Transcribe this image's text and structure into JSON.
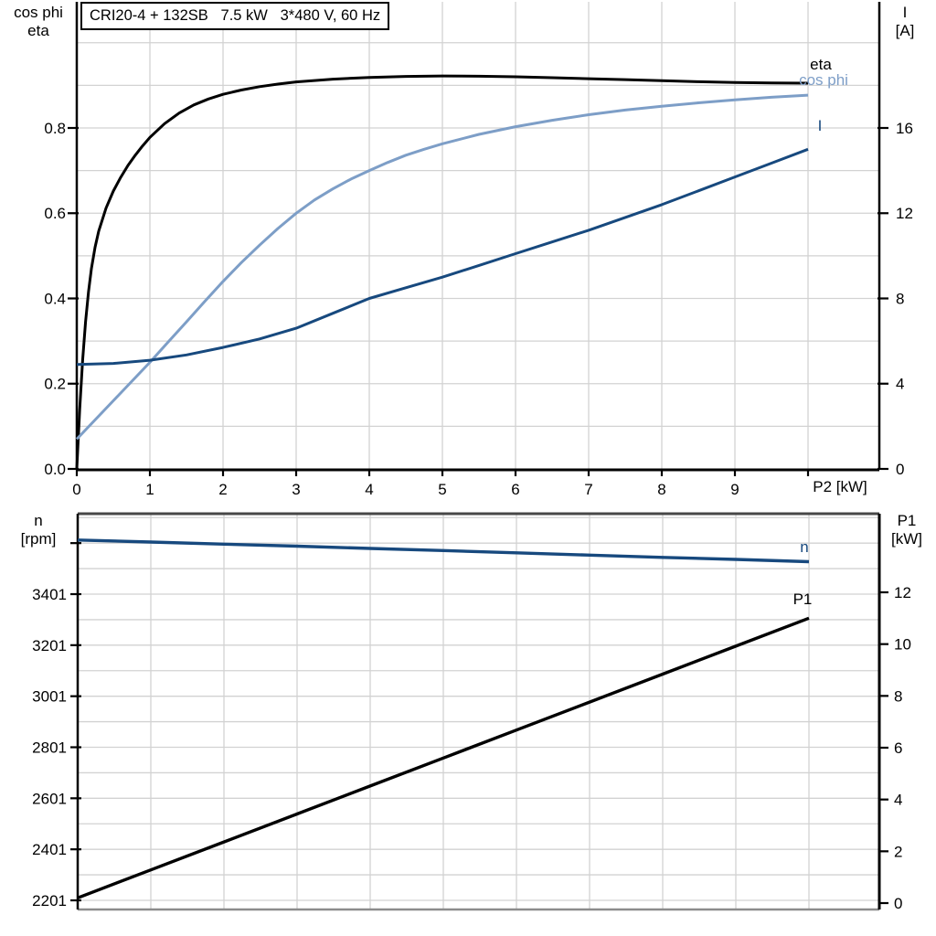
{
  "header": {
    "title": "CRI20-4 + 132SB   7.5 kW   3*480 V, 60 Hz"
  },
  "colors": {
    "black": "#000000",
    "dark_blue": "#17497e",
    "light_blue": "#7d9ec7",
    "grid": "#d2d2d2",
    "frame_dark": "#474747",
    "frame_gray": "#8c8c8c"
  },
  "chart_data": [
    {
      "id": "motor-electrical-curves",
      "type": "line",
      "x_axis": {
        "label": "P2 [kW]",
        "min": 0,
        "max": 11,
        "ticks": [
          [
            0,
            "0"
          ],
          [
            1,
            "1"
          ],
          [
            2,
            "2"
          ],
          [
            3,
            "3"
          ],
          [
            4,
            "4"
          ],
          [
            5,
            "5"
          ],
          [
            6,
            "6"
          ],
          [
            7,
            "7"
          ],
          [
            8,
            "8"
          ],
          [
            9,
            "9"
          ],
          [
            10,
            ""
          ]
        ]
      },
      "y_left": {
        "name_lines": [
          "cos phi",
          "eta"
        ],
        "min": 0,
        "max": 1.0,
        "ticks": [
          [
            0,
            "0.0"
          ],
          [
            0.2,
            "0.2"
          ],
          [
            0.4,
            "0.4"
          ],
          [
            0.6,
            "0.6"
          ],
          [
            0.8,
            "0.8"
          ]
        ],
        "grid": {
          "from": 0.1,
          "to": 1.0,
          "step": 0.1
        }
      },
      "y_right": {
        "name_lines": [
          "I",
          "[A]"
        ],
        "min": 0,
        "max": 20,
        "ticks": [
          [
            0,
            "0"
          ],
          [
            4,
            "4"
          ],
          [
            8,
            "8"
          ],
          [
            12,
            "12"
          ],
          [
            16,
            "16"
          ]
        ]
      },
      "series": [
        {
          "name": "eta",
          "axis": "left",
          "color_key": "black",
          "points": [
            [
              0,
              0
            ],
            [
              0.04,
              0.14
            ],
            [
              0.08,
              0.255
            ],
            [
              0.12,
              0.345
            ],
            [
              0.16,
              0.415
            ],
            [
              0.2,
              0.47
            ],
            [
              0.25,
              0.52
            ],
            [
              0.3,
              0.558
            ],
            [
              0.4,
              0.612
            ],
            [
              0.5,
              0.652
            ],
            [
              0.6,
              0.684
            ],
            [
              0.7,
              0.712
            ],
            [
              0.8,
              0.736
            ],
            [
              0.9,
              0.758
            ],
            [
              1,
              0.778
            ],
            [
              1.2,
              0.81
            ],
            [
              1.4,
              0.835
            ],
            [
              1.6,
              0.854
            ],
            [
              1.8,
              0.868
            ],
            [
              2,
              0.879
            ],
            [
              2.25,
              0.889
            ],
            [
              2.5,
              0.897
            ],
            [
              2.75,
              0.903
            ],
            [
              3,
              0.908
            ],
            [
              3.5,
              0.9145
            ],
            [
              4,
              0.9185
            ],
            [
              4.5,
              0.921
            ],
            [
              5,
              0.922
            ],
            [
              5.5,
              0.9215
            ],
            [
              6,
              0.92
            ],
            [
              6.5,
              0.918
            ],
            [
              7,
              0.9155
            ],
            [
              7.5,
              0.9135
            ],
            [
              8,
              0.911
            ],
            [
              8.5,
              0.9085
            ],
            [
              9,
              0.9065
            ],
            [
              9.5,
              0.9055
            ],
            [
              10,
              0.905
            ]
          ]
        },
        {
          "name": "cos phi",
          "axis": "left",
          "color_key": "light_blue",
          "points": [
            [
              0,
              0.07
            ],
            [
              0.25,
              0.115
            ],
            [
              0.5,
              0.16
            ],
            [
              0.75,
              0.205
            ],
            [
              1,
              0.25
            ],
            [
              1.25,
              0.298
            ],
            [
              1.5,
              0.345
            ],
            [
              1.75,
              0.393
            ],
            [
              2,
              0.44
            ],
            [
              2.25,
              0.484
            ],
            [
              2.5,
              0.525
            ],
            [
              2.75,
              0.564
            ],
            [
              3,
              0.6
            ],
            [
              3.25,
              0.631
            ],
            [
              3.5,
              0.657
            ],
            [
              3.75,
              0.68
            ],
            [
              4,
              0.7
            ],
            [
              4.25,
              0.719
            ],
            [
              4.5,
              0.736
            ],
            [
              4.75,
              0.75
            ],
            [
              5,
              0.763
            ],
            [
              5.5,
              0.785
            ],
            [
              6,
              0.803
            ],
            [
              6.5,
              0.818
            ],
            [
              7,
              0.831
            ],
            [
              7.5,
              0.842
            ],
            [
              8,
              0.851
            ],
            [
              8.5,
              0.859
            ],
            [
              9,
              0.866
            ],
            [
              9.5,
              0.872
            ],
            [
              10,
              0.877
            ]
          ]
        },
        {
          "name": "I",
          "axis": "right",
          "color_key": "dark_blue",
          "points": [
            [
              0,
              4.9
            ],
            [
              0.5,
              4.95
            ],
            [
              1,
              5.1
            ],
            [
              1.5,
              5.35
            ],
            [
              2,
              5.7
            ],
            [
              2.5,
              6.1
            ],
            [
              3,
              6.6
            ],
            [
              3.5,
              7.3
            ],
            [
              4,
              8.0
            ],
            [
              4.5,
              8.5
            ],
            [
              5,
              9.0
            ],
            [
              5.5,
              9.55
            ],
            [
              6,
              10.1
            ],
            [
              6.5,
              10.65
            ],
            [
              7,
              11.2
            ],
            [
              7.5,
              11.8
            ],
            [
              8,
              12.4
            ],
            [
              8.5,
              13.05
            ],
            [
              9,
              13.7
            ],
            [
              9.5,
              14.35
            ],
            [
              10,
              15.0
            ]
          ]
        }
      ]
    },
    {
      "id": "motor-speed-power-curves",
      "type": "line",
      "x_axis": {
        "label": "",
        "min": 0,
        "max": 11,
        "ticks": [
          [
            1,
            ""
          ],
          [
            2,
            ""
          ],
          [
            3,
            ""
          ],
          [
            4,
            ""
          ],
          [
            5,
            ""
          ],
          [
            6,
            ""
          ],
          [
            7,
            ""
          ],
          [
            8,
            ""
          ],
          [
            9,
            ""
          ],
          [
            10,
            ""
          ]
        ]
      },
      "y_left": {
        "name_lines": [
          "n",
          "[rpm]"
        ],
        "min": 2201,
        "max": 3701,
        "ticks": [
          [
            2201,
            "2201"
          ],
          [
            2401,
            "2401"
          ],
          [
            2601,
            "2601"
          ],
          [
            2801,
            "2801"
          ],
          [
            3001,
            "3001"
          ],
          [
            3201,
            "3201"
          ],
          [
            3401,
            "3401"
          ],
          [
            3601,
            ""
          ]
        ],
        "grid": {
          "from": 2201,
          "to": 3701,
          "step": 100
        }
      },
      "y_right": {
        "name_lines": [
          "P1",
          "[kW]"
        ],
        "min": 0,
        "max": 15,
        "ticks": [
          [
            0,
            "0"
          ],
          [
            2,
            "2"
          ],
          [
            4,
            "4"
          ],
          [
            6,
            "6"
          ],
          [
            8,
            "8"
          ],
          [
            10,
            "10"
          ],
          [
            12,
            "12"
          ]
        ]
      },
      "series": [
        {
          "name": "n",
          "axis": "left",
          "color_key": "dark_blue",
          "points": [
            [
              0,
              3613
            ],
            [
              1,
              3605
            ],
            [
              2,
              3597
            ],
            [
              3,
              3589
            ],
            [
              4,
              3580
            ],
            [
              5,
              3572
            ],
            [
              6,
              3563
            ],
            [
              7,
              3554
            ],
            [
              8,
              3545
            ],
            [
              9,
              3537
            ],
            [
              10,
              3528
            ]
          ]
        },
        {
          "name": "P1",
          "axis": "right",
          "color_key": "black",
          "points": [
            [
              0,
              0.2
            ],
            [
              1,
              1.28
            ],
            [
              2,
              2.36
            ],
            [
              3,
              3.44
            ],
            [
              4,
              4.52
            ],
            [
              5,
              5.6
            ],
            [
              6,
              6.68
            ],
            [
              7,
              7.76
            ],
            [
              8,
              8.84
            ],
            [
              9,
              9.92
            ],
            [
              10,
              11.0
            ]
          ]
        }
      ]
    }
  ]
}
